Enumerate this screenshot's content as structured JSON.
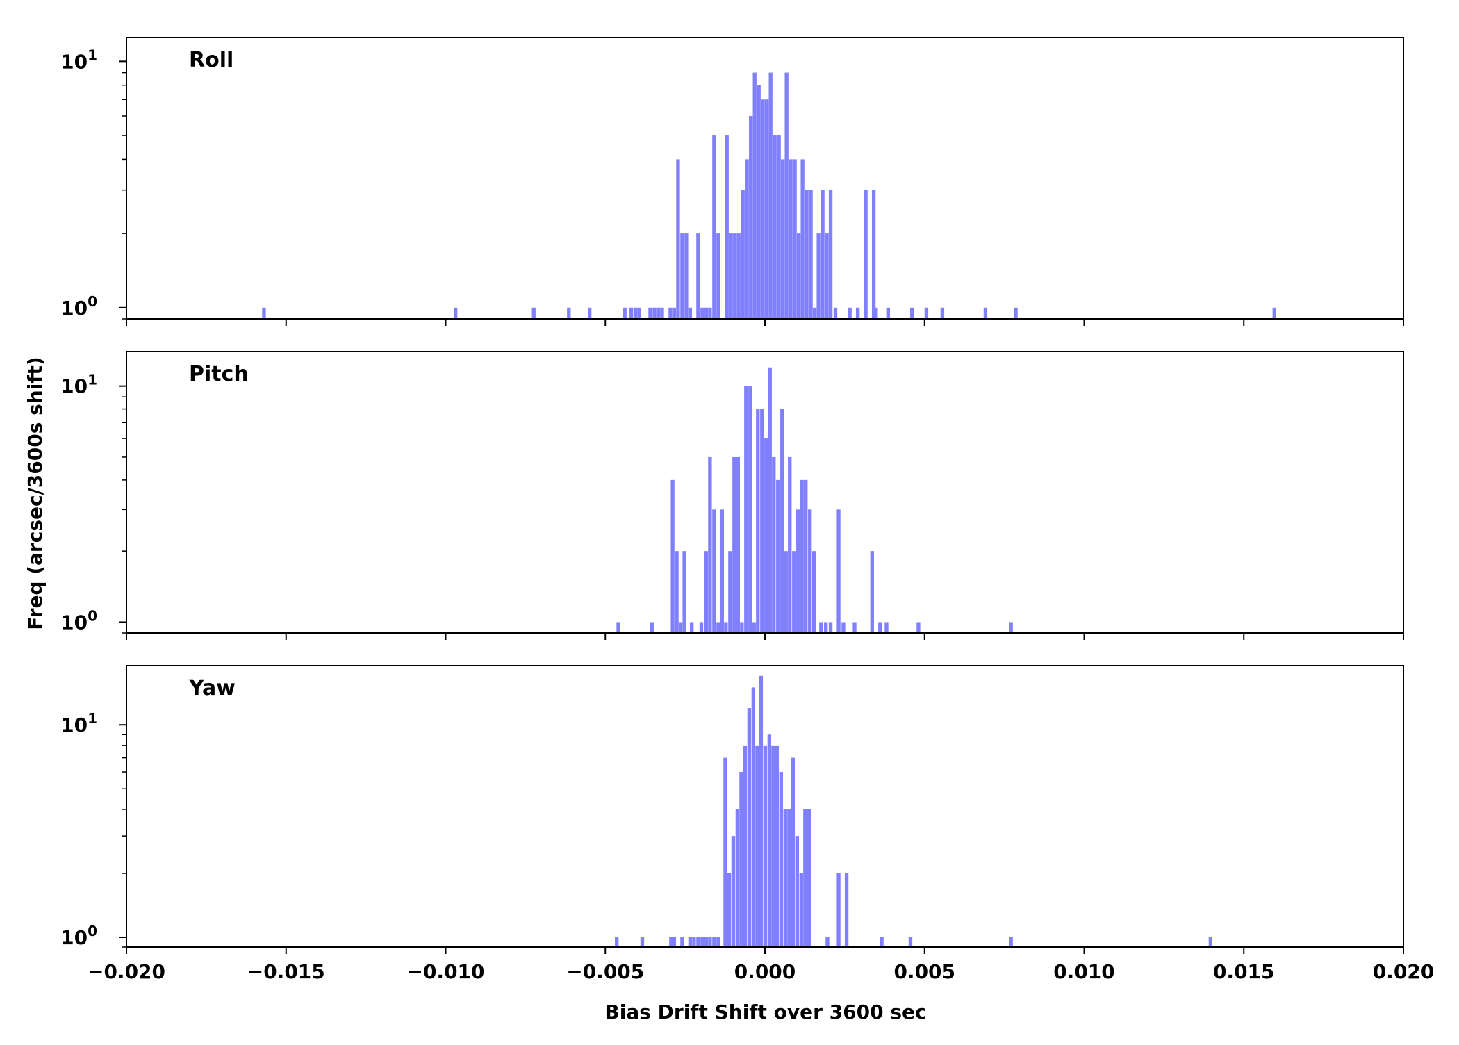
{
  "chart_data": {
    "type": "bar",
    "subtype": "histogram",
    "xlabel": "Bias Drift Shift over 3600 sec",
    "ylabel": "Freq (arcsec/3600s shift)",
    "xlim": [
      -0.02,
      0.02
    ],
    "xticks": [
      -0.02,
      -0.015,
      -0.01,
      -0.005,
      0.0,
      0.005,
      0.01,
      0.015,
      0.02
    ],
    "xtick_labels": [
      "−0.020",
      "−0.015",
      "−0.010",
      "−0.005",
      "0.000",
      "0.005",
      "0.010",
      "0.015",
      "0.020"
    ],
    "yscale": "log",
    "bin_width": 0.000125,
    "bar_color": "#8080ff",
    "grid": false,
    "panels": [
      {
        "name": "Roll",
        "ylim": [
          0.9,
          12.5
        ],
        "bins": [
          [
            -0.01575,
            1
          ],
          [
            -0.00975,
            1
          ],
          [
            -0.0073,
            1
          ],
          [
            -0.0062,
            1
          ],
          [
            -0.00555,
            1
          ],
          [
            -0.00445,
            1
          ],
          [
            -0.00425,
            1
          ],
          [
            -0.00412,
            1
          ],
          [
            -0.004,
            1
          ],
          [
            -0.00365,
            1
          ],
          [
            -0.00352,
            1
          ],
          [
            -0.0034,
            1
          ],
          [
            -0.00328,
            1
          ],
          [
            -0.00302,
            1
          ],
          [
            -0.0029,
            1
          ],
          [
            -0.00278,
            4
          ],
          [
            -0.00265,
            2
          ],
          [
            -0.00252,
            2
          ],
          [
            -0.0024,
            1
          ],
          [
            -0.00215,
            2
          ],
          [
            -0.00202,
            1
          ],
          [
            -0.0019,
            1
          ],
          [
            -0.00178,
            1
          ],
          [
            -0.00165,
            5
          ],
          [
            -0.00152,
            2
          ],
          [
            -0.00125,
            5
          ],
          [
            -0.00112,
            2
          ],
          [
            -0.001,
            2
          ],
          [
            -0.00088,
            2
          ],
          [
            -0.00075,
            3
          ],
          [
            -0.00062,
            4
          ],
          [
            -0.0005,
            6
          ],
          [
            -0.00038,
            9
          ],
          [
            -0.00025,
            8
          ],
          [
            -0.00012,
            7
          ],
          [
            0.0,
            7
          ],
          [
            0.00012,
            9
          ],
          [
            0.00025,
            5
          ],
          [
            0.00038,
            5
          ],
          [
            0.0005,
            4
          ],
          [
            0.00062,
            9
          ],
          [
            0.00075,
            4
          ],
          [
            0.00088,
            4
          ],
          [
            0.001,
            2
          ],
          [
            0.00112,
            4
          ],
          [
            0.00125,
            3
          ],
          [
            0.00138,
            3
          ],
          [
            0.0015,
            1
          ],
          [
            0.00162,
            2
          ],
          [
            0.00175,
            3
          ],
          [
            0.00188,
            2
          ],
          [
            0.002,
            3
          ],
          [
            0.00215,
            1
          ],
          [
            0.0026,
            1
          ],
          [
            0.00285,
            1
          ],
          [
            0.0031,
            3
          ],
          [
            0.00335,
            3
          ],
          [
            0.00342,
            1
          ],
          [
            0.0038,
            1
          ],
          [
            0.00455,
            1
          ],
          [
            0.005,
            1
          ],
          [
            0.0055,
            1
          ],
          [
            0.00685,
            1
          ],
          [
            0.0078,
            1
          ],
          [
            0.0159,
            1
          ]
        ]
      },
      {
        "name": "Pitch",
        "ylim": [
          0.9,
          14
        ],
        "bins": [
          [
            -0.00465,
            1
          ],
          [
            -0.0036,
            1
          ],
          [
            -0.00295,
            4
          ],
          [
            -0.00282,
            2
          ],
          [
            -0.0027,
            1
          ],
          [
            -0.00258,
            2
          ],
          [
            -0.00235,
            1
          ],
          [
            -0.00205,
            1
          ],
          [
            -0.0019,
            2
          ],
          [
            -0.00178,
            5
          ],
          [
            -0.00165,
            3
          ],
          [
            -0.00152,
            1
          ],
          [
            -0.0014,
            3
          ],
          [
            -0.00128,
            1
          ],
          [
            -0.00115,
            2
          ],
          [
            -0.00102,
            5
          ],
          [
            -0.0009,
            5
          ],
          [
            -0.00078,
            1
          ],
          [
            -0.00065,
            10
          ],
          [
            -0.00052,
            10
          ],
          [
            -0.0004,
            1
          ],
          [
            -0.00028,
            8
          ],
          [
            -0.00015,
            8
          ],
          [
            -2e-05,
            6
          ],
          [
            0.0001,
            12
          ],
          [
            0.00022,
            5
          ],
          [
            0.00035,
            4
          ],
          [
            0.00048,
            8
          ],
          [
            0.0006,
            2
          ],
          [
            0.00072,
            5
          ],
          [
            0.00085,
            2
          ],
          [
            0.00098,
            3
          ],
          [
            0.0011,
            4
          ],
          [
            0.00122,
            4
          ],
          [
            0.00135,
            3
          ],
          [
            0.00148,
            2
          ],
          [
            0.0017,
            1
          ],
          [
            0.00185,
            1
          ],
          [
            0.002,
            1
          ],
          [
            0.00225,
            3
          ],
          [
            0.0024,
            1
          ],
          [
            0.00275,
            1
          ],
          [
            0.0033,
            2
          ],
          [
            0.00355,
            1
          ],
          [
            0.00375,
            1
          ],
          [
            0.00475,
            1
          ],
          [
            0.00765,
            1
          ]
        ]
      },
      {
        "name": "Yaw",
        "ylim": [
          0.9,
          19
        ],
        "bins": [
          [
            -0.0047,
            1
          ],
          [
            -0.0039,
            1
          ],
          [
            -0.003,
            1
          ],
          [
            -0.0029,
            1
          ],
          [
            -0.00265,
            1
          ],
          [
            -0.0024,
            1
          ],
          [
            -0.00228,
            1
          ],
          [
            -0.00215,
            1
          ],
          [
            -0.00202,
            1
          ],
          [
            -0.0019,
            1
          ],
          [
            -0.00178,
            1
          ],
          [
            -0.00165,
            1
          ],
          [
            -0.00152,
            1
          ],
          [
            -0.0013,
            7
          ],
          [
            -0.00118,
            2
          ],
          [
            -0.00105,
            3
          ],
          [
            -0.00092,
            4
          ],
          [
            -0.0008,
            6
          ],
          [
            -0.00068,
            8
          ],
          [
            -0.00055,
            12
          ],
          [
            -0.00042,
            15
          ],
          [
            -0.0003,
            8
          ],
          [
            -0.00018,
            17
          ],
          [
            -5e-05,
            8
          ],
          [
            8e-05,
            9
          ],
          [
            0.0002,
            8
          ],
          [
            0.00032,
            8
          ],
          [
            0.00045,
            6
          ],
          [
            0.00058,
            4
          ],
          [
            0.0007,
            4
          ],
          [
            0.00082,
            7
          ],
          [
            0.00095,
            3
          ],
          [
            0.00108,
            2
          ],
          [
            0.0012,
            4
          ],
          [
            0.00132,
            4
          ],
          [
            0.0019,
            1
          ],
          [
            0.00225,
            2
          ],
          [
            0.0025,
            2
          ],
          [
            0.0036,
            1
          ],
          [
            0.0045,
            1
          ],
          [
            0.00765,
            1
          ],
          [
            0.0139,
            1
          ]
        ]
      }
    ]
  }
}
